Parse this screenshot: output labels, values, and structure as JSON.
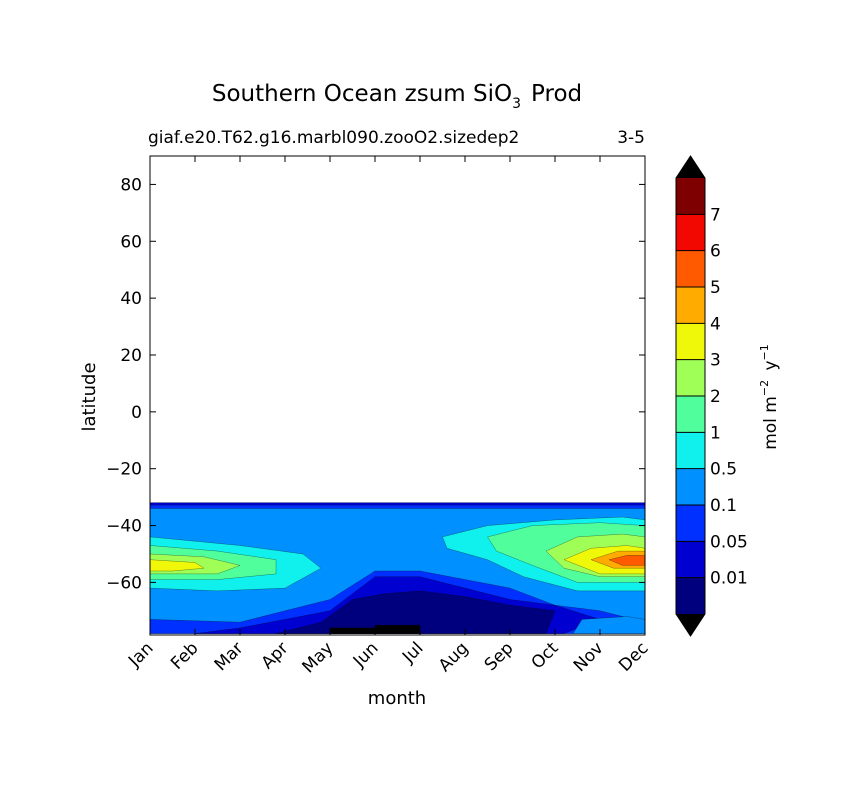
{
  "chart_data": {
    "type": "heatmap",
    "title": "Southern Ocean zsum SiO",
    "title_subscript": "3",
    "title_suffix": "Prod",
    "subtitle_left": "giaf.e20.T62.g16.marbl090.zooO2.sizedep2",
    "subtitle_right": "3-5",
    "xlabel": "month",
    "ylabel": "latitude",
    "x_categories": [
      "Jan",
      "Feb",
      "Mar",
      "Apr",
      "May",
      "Jun",
      "Jul",
      "Aug",
      "Sep",
      "Oct",
      "Nov",
      "Dec"
    ],
    "y_ticks": [
      {
        "value": 80,
        "label": "80"
      },
      {
        "value": 60,
        "label": "60"
      },
      {
        "value": 40,
        "label": "40"
      },
      {
        "value": 20,
        "label": "20"
      },
      {
        "value": 0,
        "label": "0"
      },
      {
        "value": -20,
        "label": "−20"
      },
      {
        "value": -40,
        "label": "−40"
      },
      {
        "value": -60,
        "label": "−60"
      }
    ],
    "ylim": [
      -78.5,
      90
    ],
    "xlim": [
      0,
      11
    ],
    "data_lat_range": [
      -78,
      -32
    ],
    "colorbar": {
      "label": "mol m",
      "label_sup1": "−2",
      "label_mid": " y",
      "label_sup2": "−1",
      "levels": [
        "0.01",
        "0.05",
        "0.1",
        "0.5",
        "1",
        "2",
        "3",
        "4",
        "5",
        "6",
        "7"
      ],
      "colors": [
        "#00007f",
        "#0000d0",
        "#0030ff",
        "#0090ff",
        "#10f0ec",
        "#50ff9c",
        "#a0ff56",
        "#f0f80a",
        "#ffab00",
        "#ff5a00",
        "#f20800",
        "#7f0000"
      ],
      "extend_colors": {
        "under": "#000000",
        "over": "#000000"
      }
    },
    "regions": [
      {
        "level": 3,
        "color": "#0090ff",
        "points": [
          [
            0,
            -78
          ],
          [
            0,
            -32
          ],
          [
            11,
            -32
          ],
          [
            11,
            -78
          ]
        ]
      },
      {
        "level": 2,
        "color": "#0030ff",
        "points": [
          [
            0,
            -78
          ],
          [
            0,
            -73
          ],
          [
            2,
            -74
          ],
          [
            3,
            -70
          ],
          [
            4,
            -66
          ],
          [
            5,
            -56
          ],
          [
            6,
            -56
          ],
          [
            8,
            -62
          ],
          [
            9,
            -68
          ],
          [
            10,
            -70
          ],
          [
            11,
            -74
          ],
          [
            11,
            -78
          ]
        ]
      },
      {
        "level": 1,
        "color": "#0000d0",
        "points": [
          [
            1,
            -78
          ],
          [
            2,
            -76
          ],
          [
            3,
            -73
          ],
          [
            4,
            -70
          ],
          [
            5,
            -58
          ],
          [
            6,
            -58
          ],
          [
            7,
            -62
          ],
          [
            8,
            -66
          ],
          [
            9,
            -68
          ],
          [
            10,
            -73
          ],
          [
            9.2,
            -78
          ]
        ]
      },
      {
        "level": 0,
        "color": "#00007f",
        "points": [
          [
            2.8,
            -78
          ],
          [
            3.8,
            -74
          ],
          [
            4.5,
            -66
          ],
          [
            5.2,
            -64
          ],
          [
            6,
            -63
          ],
          [
            7,
            -65
          ],
          [
            8,
            -68
          ],
          [
            9,
            -70
          ],
          [
            8.8,
            -78
          ]
        ]
      },
      {
        "level": 2,
        "color": "#0030ff",
        "points": [
          [
            0,
            -32
          ],
          [
            11,
            -32
          ],
          [
            11,
            -34
          ],
          [
            0,
            -34
          ]
        ]
      },
      {
        "level": 1,
        "color": "#0000d0",
        "points": [
          [
            0,
            -32
          ],
          [
            11,
            -32
          ],
          [
            11,
            -32.8
          ],
          [
            0,
            -32.8
          ]
        ]
      },
      {
        "level": 4,
        "color": "#10f0ec",
        "points": [
          [
            0,
            -44
          ],
          [
            2,
            -47
          ],
          [
            3.4,
            -50
          ],
          [
            3.8,
            -55
          ],
          [
            3,
            -62
          ],
          [
            1.5,
            -63
          ],
          [
            0,
            -62
          ]
        ]
      },
      {
        "level": 5,
        "color": "#50ff9c",
        "points": [
          [
            0,
            -47
          ],
          [
            1.5,
            -49
          ],
          [
            2.8,
            -52
          ],
          [
            2.8,
            -57
          ],
          [
            1.5,
            -59
          ],
          [
            0,
            -59
          ]
        ]
      },
      {
        "level": 6,
        "color": "#a0ff56",
        "points": [
          [
            0,
            -50
          ],
          [
            1.2,
            -51
          ],
          [
            2,
            -54
          ],
          [
            1.5,
            -57
          ],
          [
            0,
            -57
          ]
        ]
      },
      {
        "level": 7,
        "color": "#f0f80a",
        "points": [
          [
            0,
            -52
          ],
          [
            1,
            -53
          ],
          [
            1.2,
            -55
          ],
          [
            0.5,
            -56
          ],
          [
            0,
            -56
          ]
        ]
      },
      {
        "level": 4,
        "color": "#10f0ec",
        "points": [
          [
            6.5,
            -44
          ],
          [
            7.5,
            -40
          ],
          [
            9,
            -38
          ],
          [
            10.5,
            -37
          ],
          [
            11,
            -38
          ],
          [
            11,
            -63
          ],
          [
            9.5,
            -63
          ],
          [
            8.3,
            -58
          ],
          [
            7.5,
            -52
          ],
          [
            6.6,
            -48
          ]
        ]
      },
      {
        "level": 5,
        "color": "#50ff9c",
        "points": [
          [
            7.5,
            -44
          ],
          [
            8.5,
            -40
          ],
          [
            10,
            -39
          ],
          [
            11,
            -40
          ],
          [
            11,
            -60
          ],
          [
            9.5,
            -60
          ],
          [
            8.5,
            -54
          ],
          [
            7.7,
            -49
          ]
        ]
      },
      {
        "level": 6,
        "color": "#a0ff56",
        "points": [
          [
            8.8,
            -49
          ],
          [
            9.5,
            -44
          ],
          [
            10.5,
            -43
          ],
          [
            11,
            -44
          ],
          [
            11,
            -58
          ],
          [
            10,
            -58
          ],
          [
            9.2,
            -55
          ]
        ]
      },
      {
        "level": 7,
        "color": "#f0f80a",
        "points": [
          [
            9.2,
            -52
          ],
          [
            9.8,
            -48
          ],
          [
            10.6,
            -47
          ],
          [
            11,
            -48
          ],
          [
            11,
            -57
          ],
          [
            10,
            -57
          ]
        ]
      },
      {
        "level": 8,
        "color": "#ffab00",
        "points": [
          [
            9.8,
            -52
          ],
          [
            10.4,
            -49
          ],
          [
            11,
            -49
          ],
          [
            11,
            -55
          ],
          [
            10.3,
            -55
          ]
        ]
      },
      {
        "level": 9,
        "color": "#ff5a00",
        "points": [
          [
            10.2,
            -52
          ],
          [
            10.6,
            -50.5
          ],
          [
            11,
            -50.5
          ],
          [
            11,
            -54
          ],
          [
            10.5,
            -54
          ]
        ]
      },
      {
        "level": 10,
        "color": "#0090ff",
        "points": [
          [
            9.4,
            -78
          ],
          [
            9.6,
            -73
          ],
          [
            10.6,
            -72
          ],
          [
            11,
            -73
          ],
          [
            11,
            -78
          ]
        ]
      },
      {
        "level": 11,
        "color": "#000000",
        "points": [
          [
            4,
            -78
          ],
          [
            4,
            -76
          ],
          [
            5,
            -76
          ],
          [
            5,
            -75
          ],
          [
            6,
            -75
          ],
          [
            6,
            -78
          ]
        ]
      }
    ]
  }
}
